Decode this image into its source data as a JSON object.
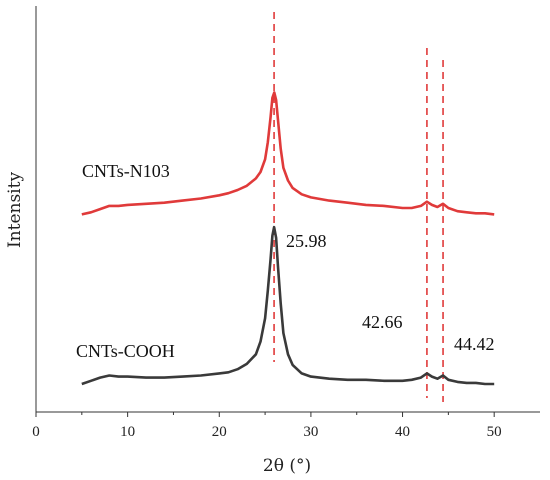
{
  "chart_data": {
    "type": "line",
    "xlabel": "2θ (°)",
    "ylabel": "Intensity",
    "xlim": [
      0,
      55
    ],
    "x_ticks": [
      0,
      10,
      20,
      30,
      40,
      50
    ],
    "y_ticks_shown": false,
    "grid": false,
    "series": [
      {
        "name": "CNTs-N103",
        "color": "#e03a3a",
        "x": [
          5,
          6,
          7,
          8,
          9,
          10,
          12,
          14,
          16,
          18,
          20,
          21,
          22,
          23,
          24,
          24.5,
          25,
          25.3,
          25.6,
          25.8,
          26.0,
          26.2,
          26.4,
          26.7,
          27.0,
          27.5,
          28,
          29,
          30,
          32,
          34,
          36,
          38,
          40,
          41,
          42,
          42.66,
          43.2,
          43.8,
          44.42,
          45,
          46,
          47,
          48,
          49,
          50
        ],
        "y": [
          0.0,
          0.02,
          0.05,
          0.08,
          0.08,
          0.09,
          0.1,
          0.11,
          0.13,
          0.15,
          0.18,
          0.2,
          0.23,
          0.27,
          0.34,
          0.4,
          0.52,
          0.68,
          0.92,
          1.1,
          1.15,
          1.08,
          0.9,
          0.62,
          0.44,
          0.32,
          0.25,
          0.19,
          0.16,
          0.13,
          0.11,
          0.09,
          0.08,
          0.06,
          0.06,
          0.08,
          0.12,
          0.09,
          0.07,
          0.1,
          0.06,
          0.03,
          0.02,
          0.01,
          0.01,
          0.0
        ],
        "offset": 1.0
      },
      {
        "name": "CNTs-COOH",
        "color": "#3a3a3a",
        "x": [
          5,
          6,
          7,
          8,
          9,
          10,
          12,
          14,
          16,
          18,
          20,
          21,
          22,
          23,
          24,
          24.5,
          25,
          25.3,
          25.6,
          25.8,
          25.98,
          26.2,
          26.4,
          26.7,
          27.0,
          27.5,
          28,
          29,
          30,
          32,
          34,
          36,
          38,
          40,
          41,
          42,
          42.66,
          43.2,
          43.8,
          44.42,
          45,
          46,
          47,
          48,
          49,
          50
        ],
        "y": [
          0.0,
          0.03,
          0.06,
          0.08,
          0.07,
          0.07,
          0.06,
          0.06,
          0.07,
          0.08,
          0.1,
          0.11,
          0.14,
          0.19,
          0.28,
          0.4,
          0.62,
          0.88,
          1.18,
          1.4,
          1.48,
          1.38,
          1.12,
          0.76,
          0.48,
          0.28,
          0.18,
          0.1,
          0.07,
          0.05,
          0.04,
          0.04,
          0.03,
          0.03,
          0.04,
          0.06,
          0.1,
          0.07,
          0.05,
          0.08,
          0.04,
          0.02,
          0.01,
          0.01,
          0.0,
          0.0
        ],
        "offset": 0.0
      }
    ],
    "reference_lines": [
      {
        "x": 25.98,
        "color": "#e03a3a",
        "style": "dashed"
      },
      {
        "x": 42.66,
        "color": "#e03a3a",
        "style": "dashed"
      },
      {
        "x": 44.42,
        "color": "#e03a3a",
        "style": "dashed"
      }
    ],
    "annotations": [
      {
        "text": "25.98",
        "near": "peak-25.98"
      },
      {
        "text": "42.66",
        "near": "peak-42.66"
      },
      {
        "text": "44.42",
        "near": "peak-44.42"
      }
    ]
  }
}
